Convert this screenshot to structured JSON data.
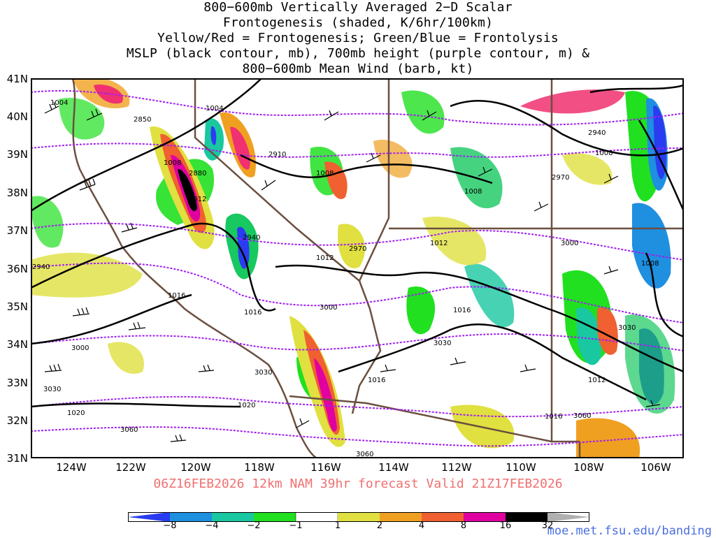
{
  "title_lines": [
    "800−600mb Vertically Averaged 2−D Scalar",
    "Frontogenesis (shaded, K/6hr/100km)",
    "Yellow/Red = Frontogenesis;  Green/Blue = Frontolysis",
    "MSLP (black contour, mb), 700mb height (purple contour, m) &",
    "800−600mb Mean Wind (barb, kt)"
  ],
  "lat_labels": [
    "41N",
    "40N",
    "39N",
    "38N",
    "37N",
    "36N",
    "35N",
    "34N",
    "33N",
    "32N",
    "31N"
  ],
  "lon_labels": [
    "124W",
    "122W",
    "120W",
    "118W",
    "116W",
    "114W",
    "112W",
    "110W",
    "108W",
    "106W"
  ],
  "run_line": "06Z16FEB2026 12km NAM 39hr forecast Valid 21Z17FEB2026",
  "colorbar": {
    "ticks": [
      "−8",
      "−4",
      "−2",
      "−1",
      "1",
      "2",
      "4",
      "8",
      "16",
      "32"
    ],
    "colors": [
      "#2a3cf0",
      "#1f8fe0",
      "#19c8a0",
      "#18c860",
      "#20e020",
      "#ffffff",
      "#e0e040",
      "#f0a020",
      "#f06030",
      "#f03070",
      "#e000a0",
      "#000000",
      "#b0b0b0"
    ]
  },
  "contour_labels": {
    "mslp": [
      "1004",
      "1004",
      "1008",
      "1008",
      "1012",
      "1008",
      "1008",
      "1008",
      "1012",
      "1012",
      "1016",
      "1016",
      "1016",
      "1012",
      "1016",
      "1016",
      "1020",
      "1020",
      "1012",
      "1008",
      "1016"
    ],
    "height": [
      "2850",
      "2910",
      "2880",
      "2940",
      "2940",
      "2970",
      "2970",
      "2970",
      "3000",
      "3000",
      "3000",
      "3030",
      "3030",
      "3030",
      "3030",
      "3060",
      "3060",
      "3060",
      "2940"
    ]
  },
  "site": "moe.met.fsu.edu/banding"
}
